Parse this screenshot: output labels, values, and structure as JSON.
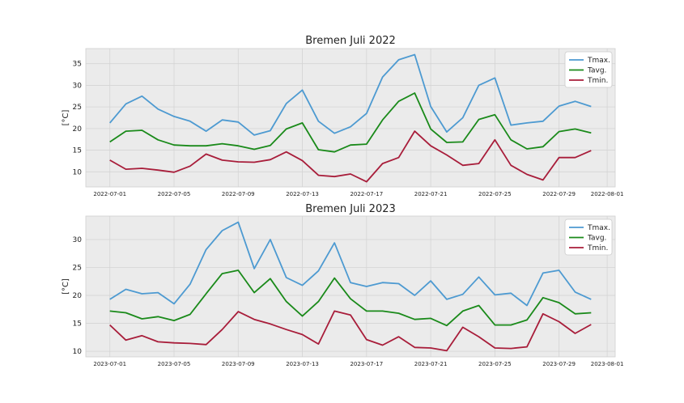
{
  "chart_data": [
    {
      "type": "line",
      "title": "Bremen Juli 2022",
      "xlabel": "",
      "ylabel": "[°C]",
      "x": [
        "2022-07-01",
        "2022-07-02",
        "2022-07-03",
        "2022-07-04",
        "2022-07-05",
        "2022-07-06",
        "2022-07-07",
        "2022-07-08",
        "2022-07-09",
        "2022-07-10",
        "2022-07-11",
        "2022-07-12",
        "2022-07-13",
        "2022-07-14",
        "2022-07-15",
        "2022-07-16",
        "2022-07-17",
        "2022-07-18",
        "2022-07-19",
        "2022-07-20",
        "2022-07-21",
        "2022-07-22",
        "2022-07-23",
        "2022-07-24",
        "2022-07-25",
        "2022-07-26",
        "2022-07-27",
        "2022-07-28",
        "2022-07-29",
        "2022-07-30",
        "2022-07-31"
      ],
      "xticks": [
        "2022-07-01",
        "2022-07-05",
        "2022-07-09",
        "2022-07-13",
        "2022-07-17",
        "2022-07-21",
        "2022-07-25",
        "2022-07-29",
        "2022-08-01"
      ],
      "ylim": [
        6.5,
        38.5
      ],
      "yticks": [
        10,
        15,
        20,
        25,
        30,
        35
      ],
      "grid": true,
      "legend": "top-right",
      "series": [
        {
          "name": "Tmax.",
          "color": "#4d9ad1",
          "values": [
            21.3,
            25.7,
            27.5,
            24.5,
            22.8,
            21.7,
            19.4,
            22.0,
            21.5,
            18.5,
            19.5,
            25.8,
            28.9,
            21.7,
            18.9,
            20.4,
            23.5,
            31.9,
            35.9,
            37.1,
            25.1,
            19.2,
            22.5,
            30.0,
            31.7,
            20.8,
            21.3,
            21.7,
            25.2,
            26.3,
            25.1
          ]
        },
        {
          "name": "Tavg.",
          "color": "#1a8a1a",
          "values": [
            16.9,
            19.4,
            19.6,
            17.4,
            16.2,
            16.0,
            16.0,
            16.5,
            16.0,
            15.2,
            16.1,
            19.9,
            21.3,
            15.1,
            14.6,
            16.2,
            16.4,
            22.0,
            26.3,
            28.2,
            19.9,
            16.8,
            16.9,
            22.1,
            23.2,
            17.4,
            15.3,
            15.8,
            19.3,
            19.9,
            19.0
          ]
        },
        {
          "name": "Tmin.",
          "color": "#a81d3a",
          "values": [
            12.7,
            10.6,
            10.8,
            10.4,
            9.9,
            11.3,
            14.1,
            12.7,
            12.3,
            12.2,
            12.8,
            14.6,
            12.6,
            9.2,
            8.9,
            9.5,
            7.7,
            11.9,
            13.3,
            19.4,
            16.0,
            13.9,
            11.5,
            11.9,
            17.4,
            11.5,
            9.4,
            8.1,
            13.3,
            13.3,
            14.9
          ]
        }
      ]
    },
    {
      "type": "line",
      "title": "Bremen Juli 2023",
      "xlabel": "",
      "ylabel": "[°C]",
      "x": [
        "2023-07-01",
        "2023-07-02",
        "2023-07-03",
        "2023-07-04",
        "2023-07-05",
        "2023-07-06",
        "2023-07-07",
        "2023-07-08",
        "2023-07-09",
        "2023-07-10",
        "2023-07-11",
        "2023-07-12",
        "2023-07-13",
        "2023-07-14",
        "2023-07-15",
        "2023-07-16",
        "2023-07-17",
        "2023-07-18",
        "2023-07-19",
        "2023-07-20",
        "2023-07-21",
        "2023-07-22",
        "2023-07-23",
        "2023-07-24",
        "2023-07-25",
        "2023-07-26",
        "2023-07-27",
        "2023-07-28",
        "2023-07-29",
        "2023-07-30",
        "2023-07-31"
      ],
      "xticks": [
        "2023-07-01",
        "2023-07-05",
        "2023-07-09",
        "2023-07-13",
        "2023-07-17",
        "2023-07-21",
        "2023-07-25",
        "2023-07-29",
        "2023-08-01"
      ],
      "ylim": [
        9.0,
        34.2
      ],
      "yticks": [
        10,
        15,
        20,
        25,
        30
      ],
      "grid": true,
      "legend": "top-right",
      "series": [
        {
          "name": "Tmax.",
          "color": "#4d9ad1",
          "values": [
            19.3,
            21.1,
            20.3,
            20.5,
            18.5,
            22.0,
            28.2,
            31.6,
            33.1,
            24.8,
            30.0,
            23.2,
            21.8,
            24.4,
            29.4,
            22.3,
            21.6,
            22.3,
            22.1,
            20.0,
            22.6,
            19.3,
            20.2,
            23.3,
            20.1,
            20.4,
            18.2,
            24.0,
            24.5,
            20.6,
            19.3
          ]
        },
        {
          "name": "Tavg.",
          "color": "#1a8a1a",
          "values": [
            17.2,
            16.9,
            15.8,
            16.2,
            15.5,
            16.6,
            20.3,
            23.9,
            24.5,
            20.5,
            23.0,
            18.9,
            16.3,
            18.9,
            23.1,
            19.4,
            17.2,
            17.2,
            16.8,
            15.7,
            15.9,
            14.6,
            17.2,
            18.2,
            14.7,
            14.7,
            15.6,
            19.6,
            18.7,
            16.7,
            16.9
          ]
        },
        {
          "name": "Tmin.",
          "color": "#a81d3a",
          "values": [
            14.7,
            12.0,
            12.8,
            11.7,
            11.5,
            11.4,
            11.2,
            13.9,
            17.1,
            15.7,
            14.9,
            13.9,
            13.0,
            11.3,
            17.2,
            16.5,
            12.1,
            11.1,
            12.6,
            10.7,
            10.6,
            10.1,
            14.3,
            12.6,
            10.6,
            10.5,
            10.8,
            16.7,
            15.3,
            13.2,
            14.8
          ]
        }
      ]
    }
  ]
}
